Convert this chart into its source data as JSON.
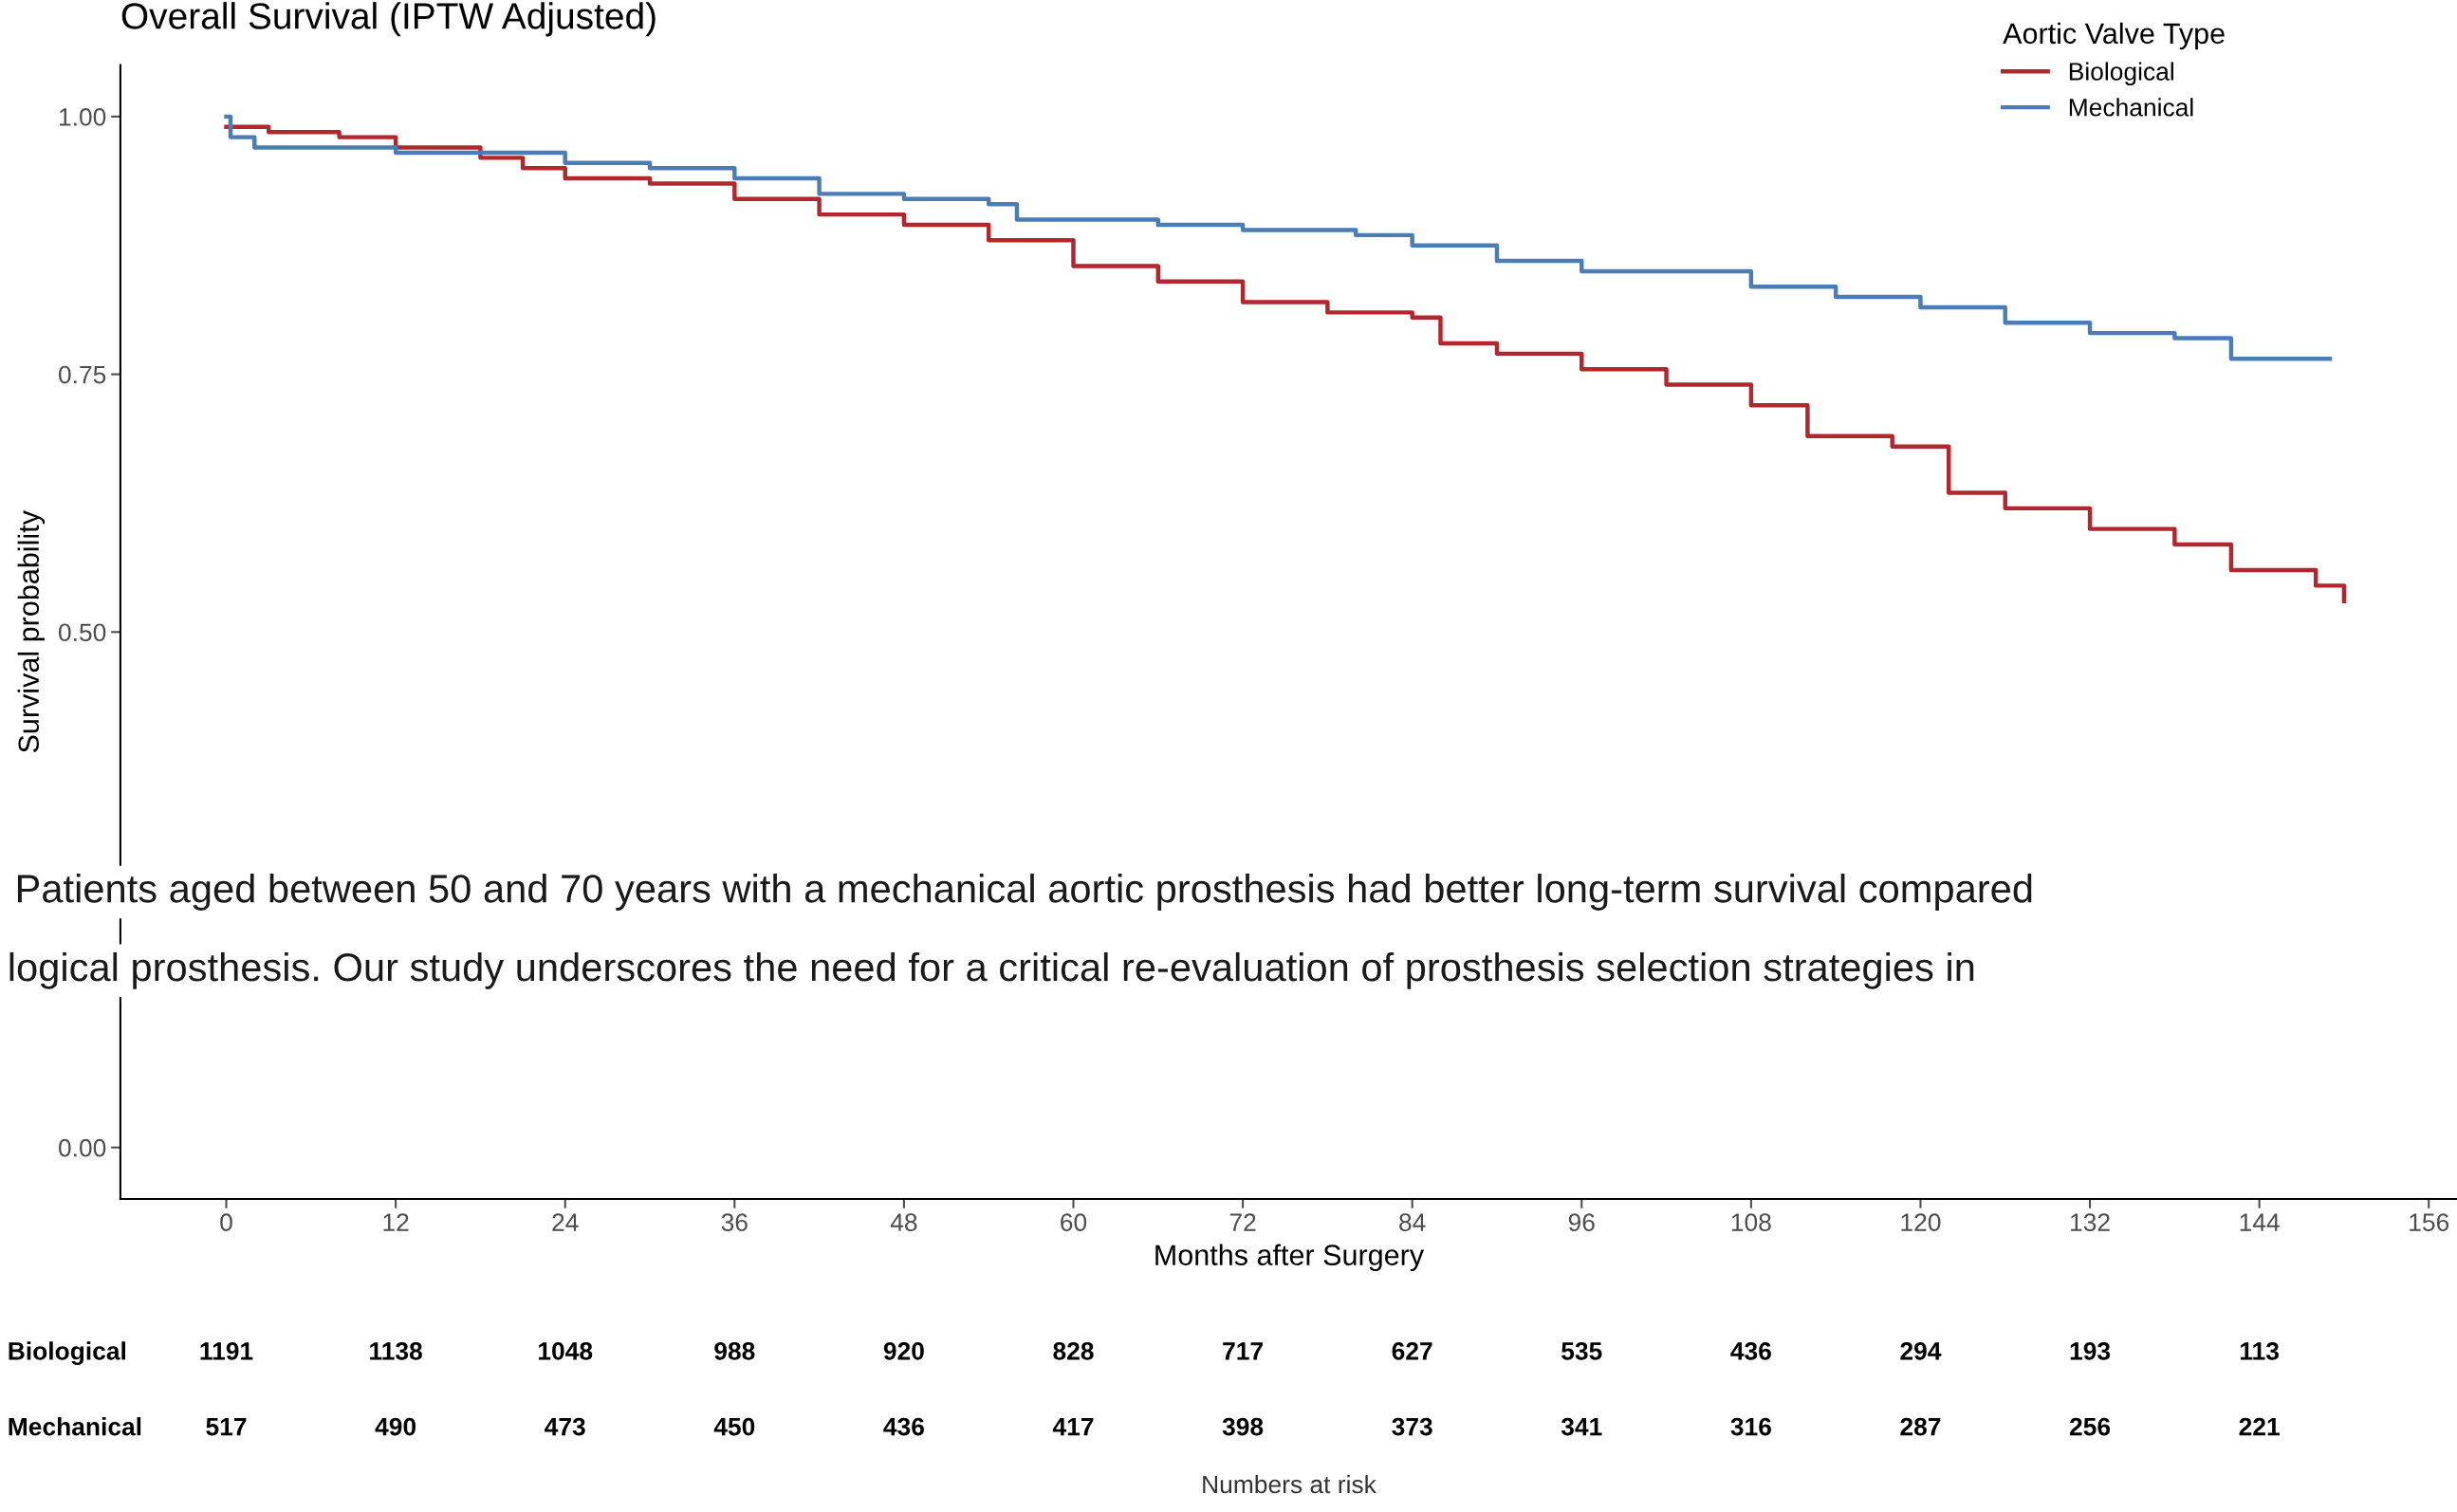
{
  "chart_data": [
    {
      "type": "step",
      "title": "Overall Survival (IPTW Adjusted)",
      "xlabel": "Months after Surgery",
      "ylabel": "Survival probability",
      "legend_title": "Aortic Valve Type",
      "legend": "top right",
      "grid": false,
      "xlim": [
        -7.5,
        158
      ],
      "xticks": [
        0,
        12,
        24,
        36,
        48,
        60,
        72,
        84,
        96,
        108,
        120,
        132,
        144,
        156
      ],
      "ylim": [
        -0.05,
        1.05
      ],
      "yticks": [
        {
          "value": 0,
          "label": "0.00"
        },
        {
          "value": 0.5,
          "label": "0.50"
        },
        {
          "value": 0.75,
          "label": "0.75"
        },
        {
          "value": 1,
          "label": "1.00"
        }
      ],
      "series": [
        {
          "name": "Biological",
          "color": "#b2272d",
          "x": [
            0,
            3,
            8,
            12,
            18,
            21,
            24,
            30,
            36,
            42,
            48,
            54,
            60,
            66,
            72,
            78,
            84,
            86,
            90,
            96,
            102,
            108,
            112,
            118,
            122,
            126,
            132,
            138,
            142,
            148,
            150
          ],
          "values": [
            0.99,
            0.985,
            0.98,
            0.97,
            0.96,
            0.95,
            0.94,
            0.935,
            0.92,
            0.905,
            0.895,
            0.88,
            0.855,
            0.84,
            0.82,
            0.81,
            0.805,
            0.78,
            0.77,
            0.755,
            0.74,
            0.72,
            0.69,
            0.68,
            0.635,
            0.62,
            0.6,
            0.585,
            0.56,
            0.545,
            0.53
          ]
        },
        {
          "name": "Mechanical",
          "color": "#4a7db5",
          "x": [
            0,
            0.3,
            2,
            12,
            24,
            30,
            36,
            42,
            48,
            54,
            56,
            66,
            72,
            80,
            84,
            90,
            96,
            108,
            114,
            120,
            126,
            132,
            138,
            142,
            149
          ],
          "values": [
            1.0,
            0.98,
            0.97,
            0.965,
            0.955,
            0.95,
            0.94,
            0.925,
            0.92,
            0.915,
            0.9,
            0.895,
            0.89,
            0.885,
            0.875,
            0.86,
            0.85,
            0.835,
            0.825,
            0.815,
            0.8,
            0.79,
            0.785,
            0.765,
            0.765
          ]
        }
      ],
      "annotations": [
        "Patients aged between 50 and 70 years with a mechanical aortic prosthesis had better long-term survival compared",
        "logical prosthesis. Our study underscores the need for a critical re-evaluation of prosthesis selection strategies in"
      ]
    },
    {
      "type": "other",
      "xlabel": "Numbers at risk",
      "annotations": [
        "Biological",
        "1191",
        "1138",
        "1048",
        "988",
        "920",
        "828",
        "717",
        "627",
        "535",
        "436",
        "294",
        "193",
        "113",
        "Mechanical",
        "517",
        "490",
        "473",
        "450",
        "436",
        "417",
        "398",
        "373",
        "341",
        "316",
        "287",
        "256",
        "221"
      ]
    }
  ]
}
